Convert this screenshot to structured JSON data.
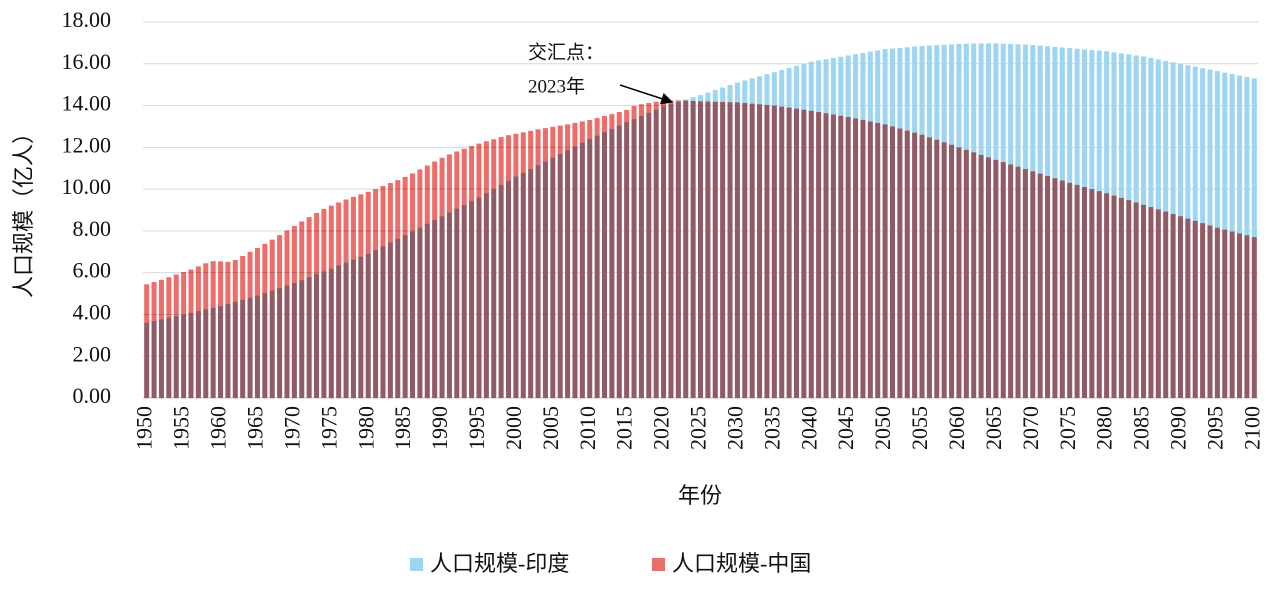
{
  "chart_data": {
    "type": "bar",
    "x_label": "年份",
    "y_label": "人口规模（亿人）",
    "annotation": [
      "交汇点：",
      "2023年"
    ],
    "categories": [
      "1950",
      null,
      null,
      null,
      null,
      "1955",
      null,
      null,
      null,
      null,
      "1960",
      null,
      null,
      null,
      null,
      "1965",
      null,
      null,
      null,
      null,
      "1970",
      null,
      null,
      null,
      null,
      "1975",
      null,
      null,
      null,
      null,
      "1980",
      null,
      null,
      null,
      null,
      "1985",
      null,
      null,
      null,
      null,
      "1990",
      null,
      null,
      null,
      null,
      "1995",
      null,
      null,
      null,
      null,
      "2000",
      null,
      null,
      null,
      null,
      "2005",
      null,
      null,
      null,
      null,
      "2010",
      null,
      null,
      null,
      null,
      "2015",
      null,
      null,
      null,
      null,
      "2020",
      null,
      null,
      null,
      null,
      "2025",
      null,
      null,
      null,
      null,
      "2030",
      null,
      null,
      null,
      null,
      "2035",
      null,
      null,
      null,
      null,
      "2040",
      null,
      null,
      null,
      null,
      "2045",
      null,
      null,
      null,
      null,
      "2050",
      null,
      null,
      null,
      null,
      "2055",
      null,
      null,
      null,
      null,
      "2060",
      null,
      null,
      null,
      null,
      "2065",
      null,
      null,
      null,
      null,
      "2070",
      null,
      null,
      null,
      null,
      "2075",
      null,
      null,
      null,
      null,
      "2080",
      null,
      null,
      null,
      null,
      "2085",
      null,
      null,
      null,
      null,
      "2090",
      null,
      null,
      null,
      null,
      "2095",
      null,
      null,
      null,
      null,
      "2100"
    ],
    "series": [
      {
        "name": "人口规模-印度",
        "color": "#9dd5f2",
        "values": [
          3.6,
          3.68,
          3.76,
          3.84,
          3.92,
          4.0,
          4.08,
          4.16,
          4.24,
          4.32,
          4.4,
          4.5,
          4.6,
          4.7,
          4.8,
          4.9,
          5.02,
          5.14,
          5.26,
          5.38,
          5.5,
          5.64,
          5.78,
          5.92,
          6.06,
          6.2,
          6.34,
          6.48,
          6.62,
          6.76,
          6.9,
          7.08,
          7.26,
          7.44,
          7.62,
          7.8,
          7.98,
          8.16,
          8.34,
          8.52,
          8.7,
          8.88,
          9.06,
          9.24,
          9.42,
          9.6,
          9.8,
          10.0,
          10.2,
          10.4,
          10.6,
          10.78,
          10.96,
          11.14,
          11.32,
          11.5,
          11.68,
          11.86,
          12.04,
          12.22,
          12.4,
          12.56,
          12.72,
          12.88,
          13.04,
          13.2,
          13.35,
          13.5,
          13.65,
          13.8,
          13.96,
          14.08,
          14.17,
          14.29,
          14.4,
          14.5,
          14.62,
          14.74,
          14.86,
          14.98,
          15.1,
          15.2,
          15.3,
          15.4,
          15.5,
          15.6,
          15.7,
          15.8,
          15.9,
          16.0,
          16.1,
          16.16,
          16.22,
          16.28,
          16.34,
          16.4,
          16.46,
          16.52,
          16.58,
          16.64,
          16.7,
          16.73,
          16.76,
          16.79,
          16.82,
          16.85,
          16.87,
          16.89,
          16.91,
          16.93,
          16.95,
          16.96,
          16.97,
          16.97,
          16.98,
          16.98,
          16.96,
          16.95,
          16.93,
          16.92,
          16.9,
          16.87,
          16.84,
          16.81,
          16.78,
          16.75,
          16.72,
          16.69,
          16.66,
          16.63,
          16.6,
          16.55,
          16.5,
          16.45,
          16.4,
          16.35,
          16.28,
          16.21,
          16.14,
          16.07,
          16.0,
          15.93,
          15.86,
          15.79,
          15.72,
          15.65,
          15.58,
          15.51,
          15.44,
          15.37,
          15.3
        ]
      },
      {
        "name": "人口规模-中国",
        "color": "#ec6d6a",
        "values": [
          5.44,
          5.55,
          5.66,
          5.78,
          5.91,
          6.03,
          6.15,
          6.3,
          6.45,
          6.55,
          6.54,
          6.52,
          6.61,
          6.8,
          7.0,
          7.18,
          7.38,
          7.58,
          7.8,
          8.02,
          8.23,
          8.45,
          8.66,
          8.86,
          9.05,
          9.21,
          9.36,
          9.5,
          9.63,
          9.75,
          9.87,
          10.0,
          10.15,
          10.29,
          10.43,
          10.58,
          10.75,
          10.94,
          11.13,
          11.32,
          11.5,
          11.66,
          11.8,
          11.93,
          12.06,
          12.18,
          12.29,
          12.39,
          12.49,
          12.58,
          12.65,
          12.72,
          12.79,
          12.86,
          12.92,
          12.98,
          13.04,
          13.1,
          13.17,
          13.24,
          13.31,
          13.4,
          13.5,
          13.59,
          13.69,
          13.79,
          13.98,
          14.06,
          14.12,
          14.18,
          14.21,
          14.24,
          14.25,
          14.24,
          14.22,
          14.2,
          14.19,
          14.18,
          14.17,
          14.16,
          14.15,
          14.12,
          14.09,
          14.06,
          14.03,
          14.0,
          13.95,
          13.9,
          13.85,
          13.8,
          13.75,
          13.69,
          13.63,
          13.57,
          13.51,
          13.45,
          13.38,
          13.31,
          13.24,
          13.17,
          13.1,
          13.0,
          12.9,
          12.8,
          12.7,
          12.6,
          12.48,
          12.36,
          12.24,
          12.12,
          12.0,
          11.88,
          11.76,
          11.64,
          11.52,
          11.4,
          11.29,
          11.18,
          11.07,
          10.96,
          10.85,
          10.74,
          10.63,
          10.52,
          10.41,
          10.3,
          10.2,
          10.1,
          10.0,
          9.9,
          9.8,
          9.69,
          9.58,
          9.47,
          9.36,
          9.25,
          9.14,
          9.03,
          8.92,
          8.81,
          8.7,
          8.59,
          8.48,
          8.37,
          8.26,
          8.15,
          8.06,
          7.97,
          7.88,
          7.79,
          7.7
        ]
      }
    ],
    "ylim": [
      0,
      18
    ],
    "yticks": [
      {
        "value": 0,
        "label": "0.00"
      },
      {
        "value": 2,
        "label": "2.00"
      },
      {
        "value": 4,
        "label": "4.00"
      },
      {
        "value": 6,
        "label": "6.00"
      },
      {
        "value": 8,
        "label": "8.00"
      },
      {
        "value": 10,
        "label": "10.00"
      },
      {
        "value": 12,
        "label": "12.00"
      },
      {
        "value": 14,
        "label": "14.00"
      },
      {
        "value": 16,
        "label": "16.00"
      },
      {
        "value": 18,
        "label": "18.00"
      }
    ],
    "grid": true
  }
}
